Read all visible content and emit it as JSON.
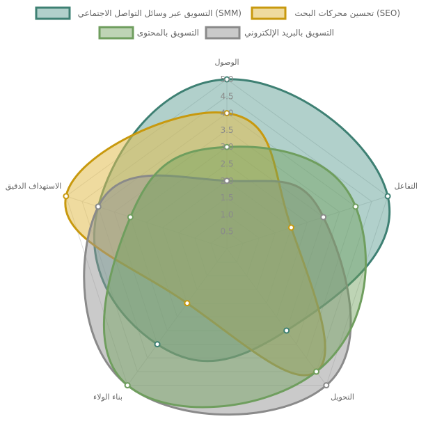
{
  "chart_data": {
    "type": "radar",
    "axes": [
      "الوصول",
      "التفاعل",
      "التحويل",
      "بناء الولاء",
      "الاستهداف الدقيق"
    ],
    "ticks": [
      "0.5",
      "1.0",
      "1.5",
      "2.0",
      "2.5",
      "3.0",
      "3.5",
      "4.0",
      "4.5",
      "5.0"
    ],
    "rlim": [
      0,
      5
    ],
    "grid": true,
    "legend_position": "top",
    "series": [
      {
        "name": "التسويق عبر وسائل التواصل الاجتماعي (SMM)",
        "values": [
          5.0,
          5.0,
          3.0,
          3.5,
          4.0
        ],
        "color": "#3e8073",
        "fill": "rgba(82,150,140,0.45)"
      },
      {
        "name": "تحسين محركات البحث (SEO)",
        "values": [
          4.0,
          2.0,
          4.5,
          2.0,
          5.0
        ],
        "color": "#c8990e",
        "fill": "rgba(226,190,80,0.55)"
      },
      {
        "name": "التسويق بالبريد الإلكتروني",
        "values": [
          2.0,
          3.0,
          5.0,
          5.0,
          4.0
        ],
        "color": "#8a8a8a",
        "fill": "rgba(150,150,150,0.5)"
      },
      {
        "name": "التسويق بالمحتوى",
        "values": [
          3.0,
          4.0,
          4.5,
          5.0,
          3.0
        ],
        "color": "#6f9e5e",
        "fill": "rgba(110,160,90,0.45)"
      }
    ]
  }
}
